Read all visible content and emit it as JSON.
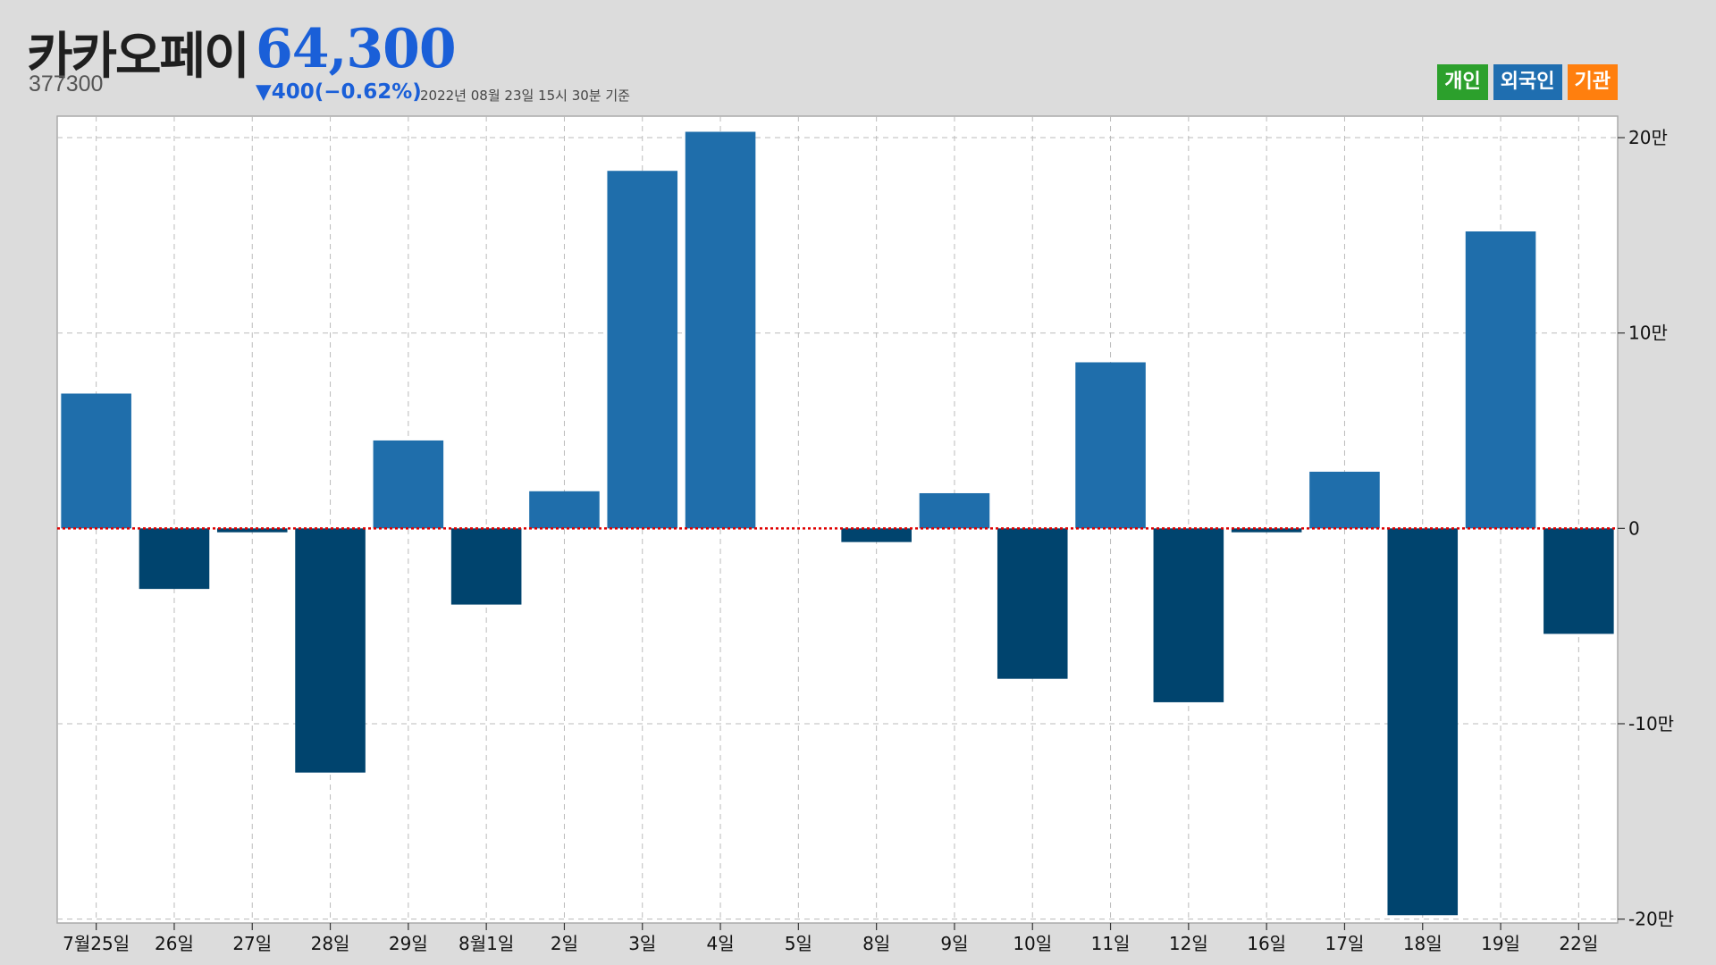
{
  "header": {
    "name": "카카오페이",
    "code": "377300",
    "price": "64,300",
    "change": "▼400(−0.62%)",
    "timestamp": "2022년 08월 23일 15시 30분 기준"
  },
  "legend": [
    {
      "label": "개인",
      "color": "#2ca02c"
    },
    {
      "label": "외국인",
      "color": "#1f6eb0"
    },
    {
      "label": "기관",
      "color": "#ff7f0e"
    }
  ],
  "colors": {
    "positive": "#1f6eab",
    "negative": "#00446e",
    "zero_line": "#e00000",
    "grid": "#bbbbbb",
    "plot_bg": "#ffffff"
  },
  "chart_data": {
    "type": "bar",
    "categories": [
      "7월25일",
      "26일",
      "27일",
      "28일",
      "29일",
      "8월1일",
      "2일",
      "3일",
      "4일",
      "5일",
      "8일",
      "9일",
      "10일",
      "11일",
      "12일",
      "16일",
      "17일",
      "18일",
      "19일",
      "22일"
    ],
    "values": [
      69000,
      -31000,
      -2000,
      -125000,
      45000,
      -39000,
      19000,
      183000,
      203000,
      0,
      -7000,
      18000,
      -77000,
      85000,
      -89000,
      -2000,
      29000,
      -198000,
      152000,
      -54000
    ],
    "ylim": [
      -202000,
      211000
    ],
    "yticks": [
      200000,
      100000,
      0,
      -100000,
      -200000
    ],
    "ytick_labels": [
      "20만",
      "10만",
      "0",
      "-10만",
      "-20만"
    ],
    "grid": true,
    "y_axis_side": "right",
    "zero_line": "dotted"
  }
}
